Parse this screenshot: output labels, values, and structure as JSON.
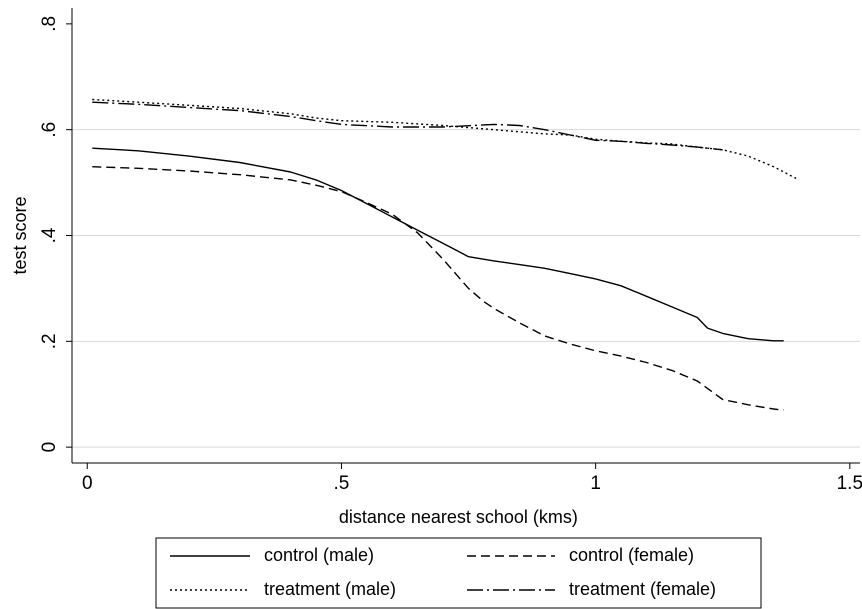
{
  "chart_data": {
    "type": "line",
    "xlabel": "distance nearest school (kms)",
    "ylabel": "test score",
    "xlim": [
      -0.03,
      1.52
    ],
    "ylim": [
      -0.03,
      0.83
    ],
    "x_ticks": [
      {
        "value": 0,
        "label": "0"
      },
      {
        "value": 0.5,
        "label": ".5"
      },
      {
        "value": 1,
        "label": "1"
      },
      {
        "value": 1.5,
        "label": "1.5"
      }
    ],
    "y_ticks": [
      {
        "value": 0,
        "label": "0"
      },
      {
        "value": 0.2,
        "label": ".2"
      },
      {
        "value": 0.4,
        "label": ".4"
      },
      {
        "value": 0.6,
        "label": ".6"
      },
      {
        "value": 0.8,
        "label": ".8"
      }
    ],
    "grid": "horizontal",
    "legend_position": "bottom",
    "series": [
      {
        "name": "control (male)",
        "dash": "solid",
        "x": [
          0.01,
          0.1,
          0.2,
          0.3,
          0.4,
          0.45,
          0.5,
          0.55,
          0.6,
          0.65,
          0.7,
          0.73,
          0.75,
          0.8,
          0.85,
          0.9,
          0.95,
          1.0,
          1.05,
          1.1,
          1.15,
          1.2,
          1.22,
          1.25,
          1.3,
          1.35,
          1.37
        ],
        "values": [
          0.565,
          0.56,
          0.55,
          0.538,
          0.52,
          0.505,
          0.485,
          0.46,
          0.435,
          0.41,
          0.385,
          0.37,
          0.36,
          0.352,
          0.345,
          0.338,
          0.328,
          0.318,
          0.305,
          0.285,
          0.265,
          0.245,
          0.225,
          0.215,
          0.205,
          0.201,
          0.201
        ]
      },
      {
        "name": "control (female)",
        "dash": "dashed",
        "x": [
          0.01,
          0.1,
          0.2,
          0.3,
          0.4,
          0.45,
          0.5,
          0.55,
          0.6,
          0.65,
          0.7,
          0.75,
          0.78,
          0.8,
          0.85,
          0.9,
          0.95,
          1.0,
          1.05,
          1.1,
          1.15,
          1.2,
          1.25,
          1.3,
          1.35,
          1.37
        ],
        "values": [
          0.53,
          0.527,
          0.522,
          0.515,
          0.505,
          0.495,
          0.483,
          0.462,
          0.44,
          0.405,
          0.355,
          0.3,
          0.275,
          0.262,
          0.235,
          0.21,
          0.195,
          0.182,
          0.172,
          0.16,
          0.145,
          0.125,
          0.09,
          0.08,
          0.072,
          0.07
        ]
      },
      {
        "name": "treatment (male)",
        "dash": "dotted",
        "x": [
          0.01,
          0.1,
          0.2,
          0.3,
          0.4,
          0.45,
          0.5,
          0.6,
          0.7,
          0.8,
          0.9,
          0.95,
          1.0,
          1.05,
          1.1,
          1.15,
          1.2,
          1.25,
          1.3,
          1.35,
          1.4
        ],
        "values": [
          0.657,
          0.652,
          0.646,
          0.64,
          0.63,
          0.622,
          0.617,
          0.614,
          0.608,
          0.6,
          0.592,
          0.59,
          0.582,
          0.578,
          0.575,
          0.573,
          0.567,
          0.562,
          0.55,
          0.53,
          0.505
        ]
      },
      {
        "name": "treatment (female)",
        "dash": "longdash-dot",
        "x": [
          0.01,
          0.1,
          0.2,
          0.3,
          0.4,
          0.45,
          0.5,
          0.6,
          0.7,
          0.8,
          0.85,
          0.9,
          0.95,
          1.0,
          1.05,
          1.1,
          1.15,
          1.2,
          1.25
        ],
        "values": [
          0.652,
          0.648,
          0.642,
          0.636,
          0.625,
          0.617,
          0.61,
          0.605,
          0.605,
          0.61,
          0.608,
          0.6,
          0.59,
          0.58,
          0.578,
          0.574,
          0.571,
          0.567,
          0.562
        ]
      }
    ]
  }
}
